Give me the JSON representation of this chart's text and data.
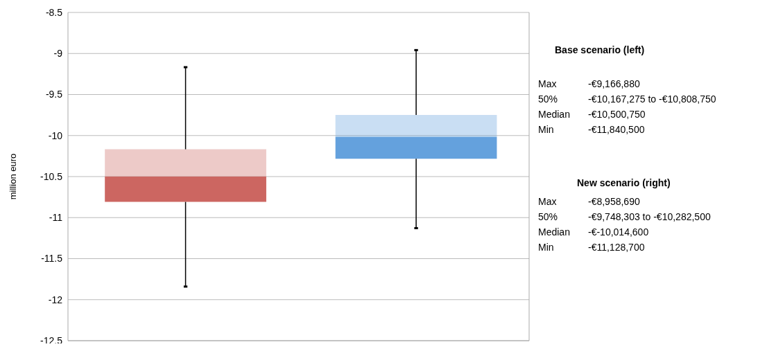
{
  "chart_data": {
    "type": "box",
    "ylabel": "million euro",
    "categories": [
      null,
      null
    ],
    "boxes": [
      {
        "low": -11.8405,
        "q1": -10.80875,
        "median": -10.50075,
        "q3": -10.167275,
        "high": -9.16688
      },
      {
        "low": -11.1287,
        "q1": -10.2825,
        "median": -10.0146,
        "q3": -9.748303,
        "high": -8.95869
      }
    ],
    "colors": [
      "#cc6661",
      "#64a1dd"
    ],
    "ylim": [
      -12.5,
      -8.5
    ],
    "yticks": [
      -12.5,
      -12,
      -11.5,
      -11,
      -10.5,
      -10,
      -9.5,
      -9,
      -8.5
    ],
    "grid": "y",
    "annotations": [
      "Base scenario (left)",
      "Max\t-€9,166,880",
      "50%\t-€10,167,275 to -€10,808,750",
      "Median\t-€10,500,750",
      "Min\t-€11,840,500",
      "New scenario (right)",
      "Max\t-€8,958,690",
      "50%\t-€9,748,303 to -€10,282,500",
      "Median\t-€-10,014,600",
      "Min\t-€11,128,700"
    ]
  }
}
